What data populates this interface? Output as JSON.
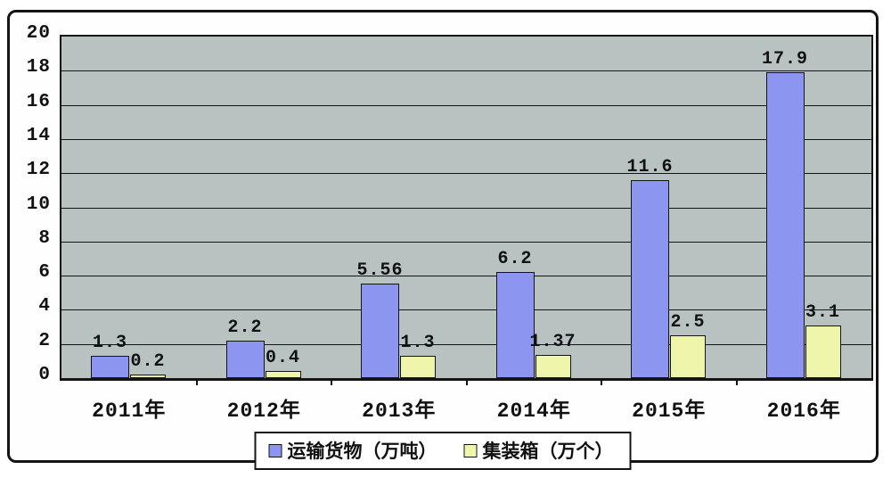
{
  "chart_data": {
    "type": "bar",
    "title": "",
    "categories": [
      "2011年",
      "2012年",
      "2013年",
      "2014年",
      "2015年",
      "2016年"
    ],
    "series": [
      {
        "name": "运输货物（万吨）",
        "color": "#8c96f0",
        "values": [
          1.3,
          2.2,
          5.56,
          6.2,
          11.6,
          17.9
        ],
        "data_labels": [
          "1.3",
          "2.2",
          "5.56",
          "6.2",
          "11.6",
          "17.9"
        ]
      },
      {
        "name": "集装箱（万个）",
        "color": "#eff5ab",
        "values": [
          0.2,
          0.4,
          1.3,
          1.37,
          2.5,
          3.1
        ],
        "data_labels": [
          "0.2",
          "0.4",
          "1.3",
          "1.37",
          "2.5",
          "3.1"
        ]
      }
    ],
    "ylim": [
      0,
      20
    ],
    "yticks": [
      0,
      2,
      4,
      6,
      8,
      10,
      12,
      14,
      16,
      18,
      20
    ],
    "ytick_labels": [
      "0",
      "2",
      "4",
      "6",
      "8",
      "10",
      "12",
      "14",
      "16",
      "18",
      "20"
    ],
    "grid": true,
    "legend_position": "bottom",
    "plot_background": "#b8c3c1",
    "axis_color": "#141414"
  }
}
